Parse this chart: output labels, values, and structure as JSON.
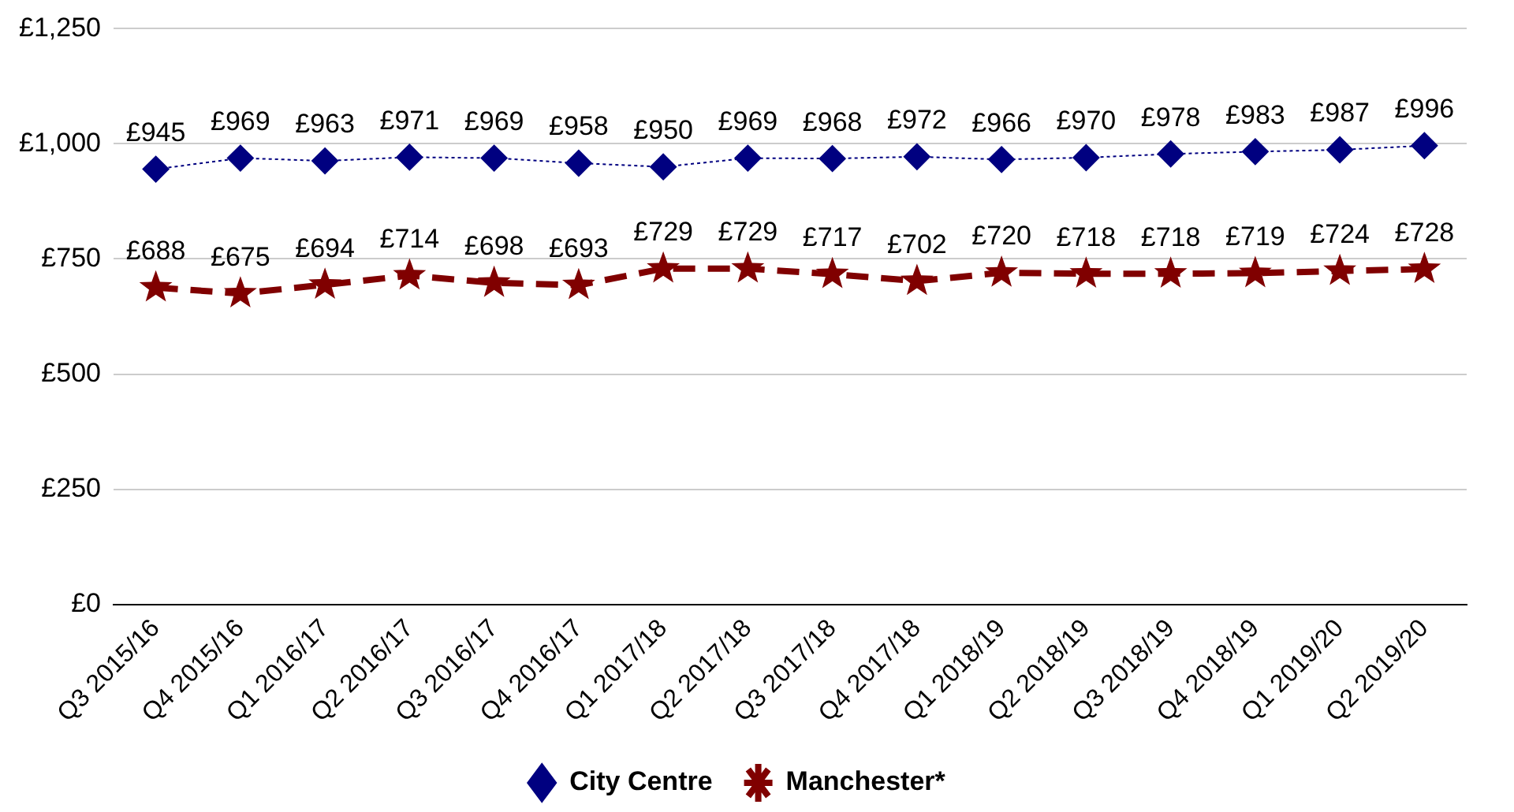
{
  "chart_data": {
    "type": "line",
    "categories": [
      "Q3 2015/16",
      "Q4 2015/16",
      "Q1 2016/17",
      "Q2 2016/17",
      "Q3 2016/17",
      "Q4 2016/17",
      "Q1 2017/18",
      "Q2 2017/18",
      "Q3 2017/18",
      "Q4 2017/18",
      "Q1 2018/19",
      "Q2 2018/19",
      "Q3 2018/19",
      "Q4 2018/19",
      "Q1 2019/20",
      "Q2 2019/20"
    ],
    "series": [
      {
        "name": "City Centre",
        "color": "#000080",
        "marker": "diamond",
        "line_style": "dotted",
        "values": [
          945,
          969,
          963,
          971,
          969,
          958,
          950,
          969,
          968,
          972,
          966,
          970,
          978,
          983,
          987,
          996
        ],
        "value_labels": [
          "£945",
          "£969",
          "£963",
          "£971",
          "£969",
          "£958",
          "£950",
          "£969",
          "£968",
          "£972",
          "£966",
          "£970",
          "£978",
          "£983",
          "£987",
          "£996"
        ]
      },
      {
        "name": "Manchester*",
        "color": "#800000",
        "marker": "star",
        "line_style": "dashed",
        "values": [
          688,
          675,
          694,
          714,
          698,
          693,
          729,
          729,
          717,
          702,
          720,
          718,
          718,
          719,
          724,
          728
        ],
        "value_labels": [
          "£688",
          "£675",
          "£694",
          "£714",
          "£698",
          "£693",
          "£729",
          "£729",
          "£717",
          "£702",
          "£720",
          "£718",
          "£718",
          "£719",
          "£724",
          "£728"
        ]
      }
    ],
    "ylim": [
      0,
      1250
    ],
    "yticks": [
      {
        "value": 0,
        "label": "£0"
      },
      {
        "value": 250,
        "label": "£250"
      },
      {
        "value": 500,
        "label": "£500"
      },
      {
        "value": 750,
        "label": "£750"
      },
      {
        "value": 1000,
        "label": "£1,000"
      },
      {
        "value": 1250,
        "label": "£1,250"
      }
    ],
    "grid": "y",
    "legend": "bottom"
  }
}
